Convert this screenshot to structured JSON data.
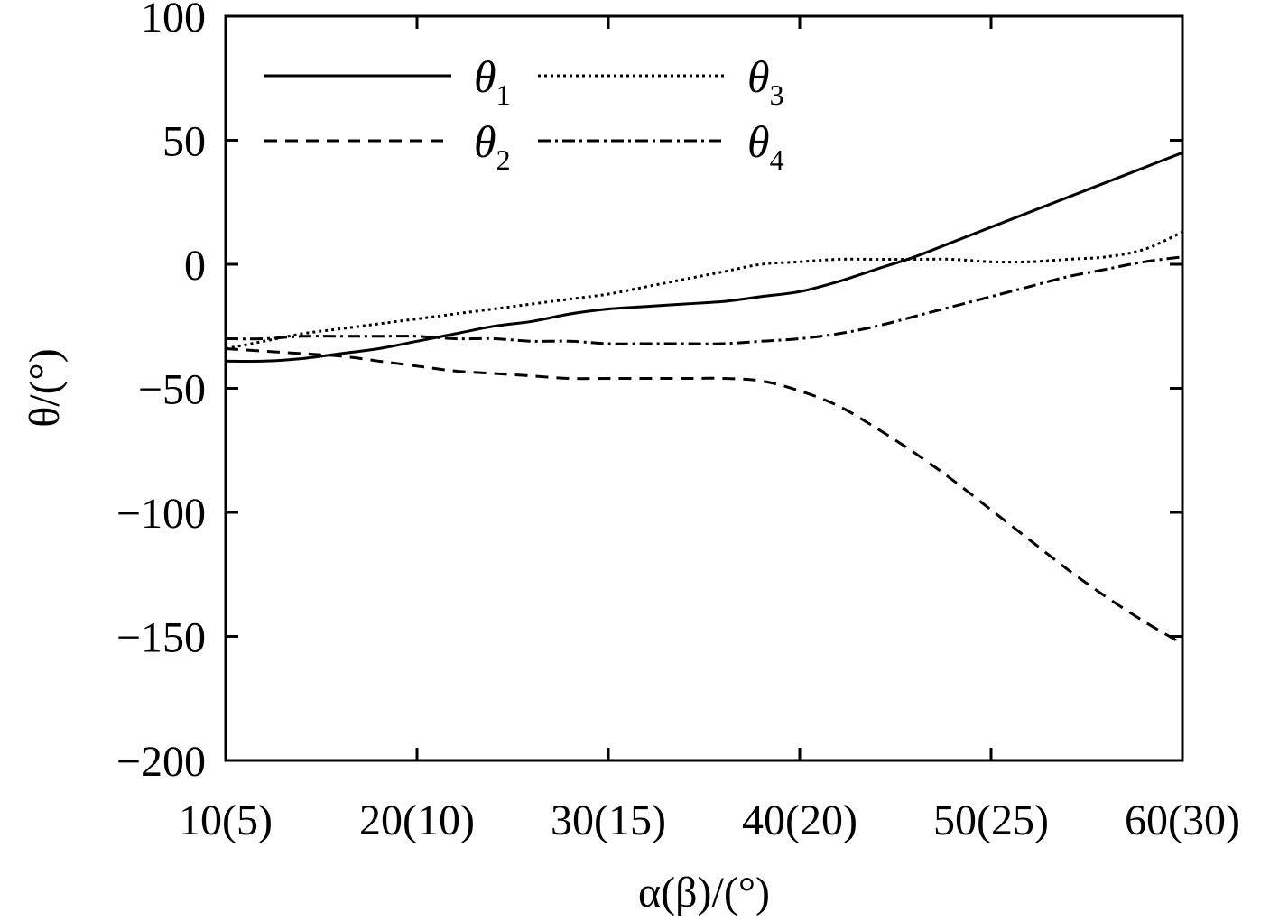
{
  "chart_data": {
    "type": "line",
    "xlabel": "α(β)/(°)",
    "ylabel": "θ/(°)",
    "xlim": [
      10,
      60
    ],
    "ylim": [
      -200,
      100
    ],
    "x_ticks": [
      10,
      20,
      30,
      40,
      50,
      60
    ],
    "x_tick_labels": [
      "10(5)",
      "20(10)",
      "30(15)",
      "40(20)",
      "50(25)",
      "60(30)"
    ],
    "y_ticks": [
      100,
      50,
      0,
      -50,
      -100,
      -150,
      -200
    ],
    "y_tick_labels": [
      "100",
      "50",
      "0",
      "−50",
      "−100",
      "−150",
      "−200"
    ],
    "grid": false,
    "legend_position": "top-left",
    "series": [
      {
        "name": "θ1",
        "name_base": "θ",
        "name_sub": "1",
        "style": "solid",
        "x": [
          10,
          12,
          14,
          16,
          18,
          20,
          22,
          24,
          26,
          28,
          30,
          32,
          34,
          36,
          38,
          40,
          42,
          44,
          46,
          48,
          50,
          52,
          54,
          56,
          58,
          60
        ],
        "y": [
          -39,
          -39,
          -38,
          -36,
          -34,
          -31,
          -28,
          -25,
          -23,
          -20,
          -18,
          -17,
          -16,
          -15,
          -13,
          -11,
          -7,
          -2,
          3,
          9,
          15,
          21,
          27,
          33,
          39,
          45
        ]
      },
      {
        "name": "θ2",
        "name_base": "θ",
        "name_sub": "2",
        "style": "dashed",
        "x": [
          10,
          12,
          14,
          16,
          18,
          20,
          22,
          24,
          26,
          28,
          30,
          32,
          34,
          36,
          38,
          40,
          42,
          44,
          46,
          48,
          50,
          52,
          54,
          56,
          58,
          60
        ],
        "y": [
          -34,
          -35,
          -36,
          -37,
          -39,
          -41,
          -43,
          -44,
          -45,
          -46,
          -46,
          -46,
          -46,
          -46,
          -47,
          -51,
          -57,
          -66,
          -76,
          -87,
          -99,
          -111,
          -123,
          -134,
          -144,
          -153
        ]
      },
      {
        "name": "θ3",
        "name_base": "θ",
        "name_sub": "3",
        "style": "dotted",
        "x": [
          10,
          12,
          14,
          16,
          18,
          20,
          22,
          24,
          26,
          28,
          30,
          32,
          34,
          36,
          38,
          40,
          42,
          44,
          46,
          48,
          50,
          52,
          54,
          56,
          58,
          60
        ],
        "y": [
          -34,
          -31,
          -28,
          -26,
          -24,
          -22,
          -20,
          -18,
          -16,
          -14,
          -12,
          -9,
          -6,
          -3,
          0,
          1,
          2,
          2,
          2,
          2,
          1,
          1,
          2,
          3,
          6,
          13
        ]
      },
      {
        "name": "θ4",
        "name_base": "θ",
        "name_sub": "4",
        "style": "dashdot",
        "x": [
          10,
          12,
          14,
          16,
          18,
          20,
          22,
          24,
          26,
          28,
          30,
          32,
          34,
          36,
          38,
          40,
          42,
          44,
          46,
          48,
          50,
          52,
          54,
          56,
          58,
          60
        ],
        "y": [
          -30,
          -30,
          -29,
          -29,
          -29,
          -29,
          -30,
          -30,
          -31,
          -31,
          -32,
          -32,
          -32,
          -32,
          -31,
          -30,
          -28,
          -25,
          -21,
          -17,
          -13,
          -9,
          -5,
          -2,
          1,
          3
        ]
      }
    ]
  }
}
